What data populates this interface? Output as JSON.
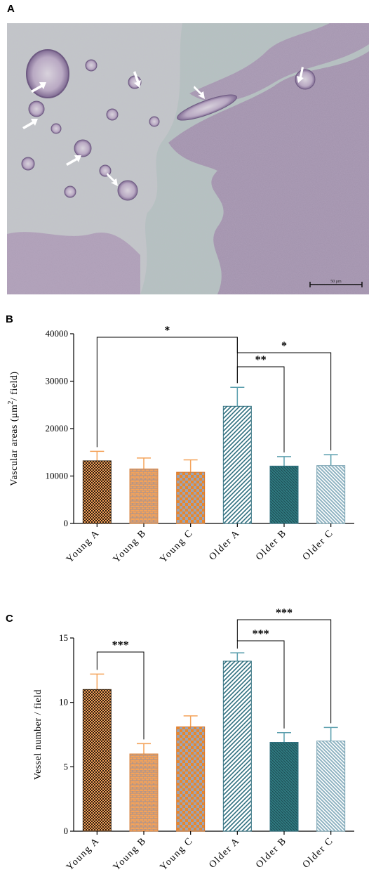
{
  "panels": {
    "a_label": "A",
    "b_label": "B",
    "c_label": "C"
  },
  "micrograph": {
    "scale_bar_label": "50 μm",
    "arrow_icon": "white-arrow-icon"
  },
  "colors": {
    "young_a": "#f4a259",
    "young_b": "#f4a259",
    "young_c": "#e8872c",
    "older_a": "#2f6f7f",
    "older_b": "#2f7a80",
    "older_c": "#8fb3c2",
    "young_error": "#f4a259",
    "older_error": "#5b9fae"
  },
  "chart_data": [
    {
      "type": "bar",
      "categories": [
        "Young A",
        "Young B",
        "Young C",
        "Older A",
        "Older B",
        "Older C"
      ],
      "values": [
        13200,
        11500,
        10800,
        24700,
        12100,
        12200
      ],
      "errors": [
        2000,
        2300,
        2600,
        4000,
        2000,
        2300
      ],
      "title": "",
      "xlabel": "",
      "ylabel": "Vascular areas (μm²/ field)",
      "ylabel_main": "Vascular areas (μm",
      "ylabel_sup": "2",
      "ylabel_tail": "/ field)",
      "ylim": [
        0,
        40000
      ],
      "yticks": [
        0,
        10000,
        20000,
        30000,
        40000
      ],
      "ytick_labels": [
        "0",
        "10000",
        "20000",
        "30000",
        "40000"
      ],
      "grid": false,
      "significance": [
        {
          "from": 0,
          "to": 3,
          "label": "*"
        },
        {
          "from": 3,
          "to": 4,
          "label": "**"
        },
        {
          "from": 3,
          "to": 5,
          "label": "*"
        }
      ]
    },
    {
      "type": "bar",
      "categories": [
        "Young A",
        "Young B",
        "Young C",
        "Older A",
        "Older B",
        "Older C"
      ],
      "values": [
        11.0,
        6.0,
        8.1,
        13.2,
        6.9,
        7.0
      ],
      "errors": [
        1.2,
        0.8,
        0.85,
        0.65,
        0.75,
        1.05
      ],
      "title": "",
      "xlabel": "",
      "ylabel": "Vessel number / field",
      "ylim": [
        0,
        15
      ],
      "yticks": [
        0,
        5,
        10,
        15
      ],
      "ytick_labels": [
        "0",
        "5",
        "10",
        "15"
      ],
      "grid": false,
      "significance": [
        {
          "from": 0,
          "to": 1,
          "label": "***"
        },
        {
          "from": 3,
          "to": 4,
          "label": "***"
        },
        {
          "from": 3,
          "to": 5,
          "label": "***"
        }
      ]
    }
  ]
}
